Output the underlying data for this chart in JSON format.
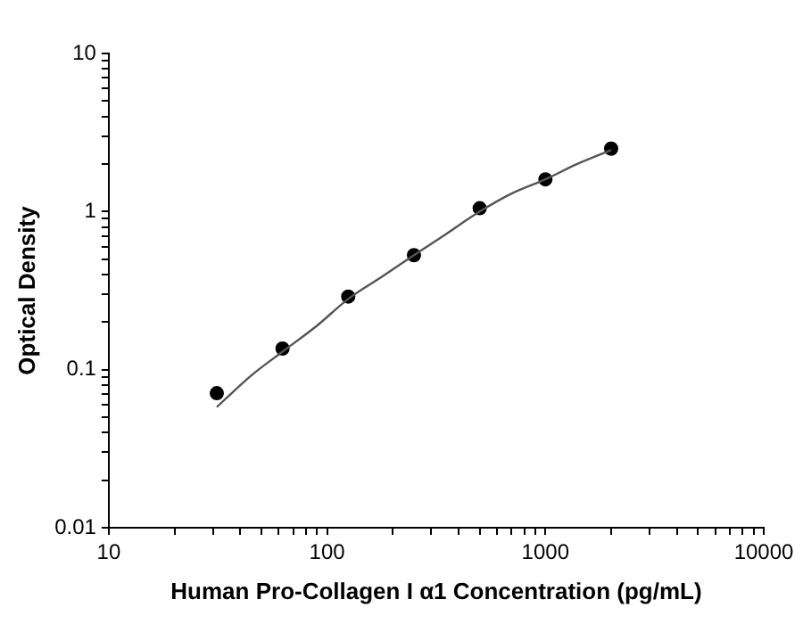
{
  "chart_data": {
    "type": "scatter",
    "xlabel": "Human Pro-Collagen I α1 Concentration (pg/mL)",
    "ylabel": "Optical Density",
    "log": "xy",
    "grid": false,
    "legend": false,
    "marker": "circle",
    "xlim": [
      10,
      10000
    ],
    "ylim": [
      0.01,
      10
    ],
    "xticks": [
      10,
      {
        "value": 20,
        "label": null
      },
      {
        "value": 30,
        "label": null
      },
      {
        "value": 40,
        "label": null
      },
      {
        "value": 50,
        "label": null
      },
      {
        "value": 60,
        "label": null
      },
      {
        "value": 70,
        "label": null
      },
      {
        "value": 80,
        "label": null
      },
      {
        "value": 90,
        "label": null
      },
      100,
      {
        "value": 200,
        "label": null
      },
      {
        "value": 300,
        "label": null
      },
      {
        "value": 400,
        "label": null
      },
      {
        "value": 500,
        "label": null
      },
      {
        "value": 600,
        "label": null
      },
      {
        "value": 700,
        "label": null
      },
      {
        "value": 800,
        "label": null
      },
      {
        "value": 900,
        "label": null
      },
      1000,
      {
        "value": 2000,
        "label": null
      },
      {
        "value": 3000,
        "label": null
      },
      {
        "value": 4000,
        "label": null
      },
      {
        "value": 5000,
        "label": null
      },
      {
        "value": 6000,
        "label": null
      },
      {
        "value": 7000,
        "label": null
      },
      {
        "value": 8000,
        "label": null
      },
      {
        "value": 9000,
        "label": null
      },
      10000
    ],
    "yticks": [
      0.01,
      {
        "value": 0.02,
        "label": null
      },
      {
        "value": 0.03,
        "label": null
      },
      {
        "value": 0.04,
        "label": null
      },
      {
        "value": 0.05,
        "label": null
      },
      {
        "value": 0.06,
        "label": null
      },
      {
        "value": 0.07,
        "label": null
      },
      {
        "value": 0.08,
        "label": null
      },
      {
        "value": 0.09,
        "label": null
      },
      0.1,
      {
        "value": 0.2,
        "label": null
      },
      {
        "value": 0.3,
        "label": null
      },
      {
        "value": 0.4,
        "label": null
      },
      {
        "value": 0.5,
        "label": null
      },
      {
        "value": 0.6,
        "label": null
      },
      {
        "value": 0.7,
        "label": null
      },
      {
        "value": 0.8,
        "label": null
      },
      {
        "value": 0.9,
        "label": null
      },
      1,
      {
        "value": 2,
        "label": null
      },
      {
        "value": 3,
        "label": null
      },
      {
        "value": 4,
        "label": null
      },
      {
        "value": 5,
        "label": null
      },
      {
        "value": 6,
        "label": null
      },
      {
        "value": 7,
        "label": null
      },
      {
        "value": 8,
        "label": null
      },
      {
        "value": 9,
        "label": null
      },
      10
    ],
    "series": [
      {
        "color": "#000000",
        "x": [
          31.25,
          62.5,
          125,
          250,
          500,
          1000,
          2000
        ],
        "values": [
          0.071,
          0.136,
          0.29,
          0.53,
          1.05,
          1.6,
          2.5
        ]
      },
      {
        "type": "line",
        "color": "#555555",
        "marker": "none",
        "x": [
          31.25,
          45,
          62.5,
          90,
          125,
          180,
          250,
          350,
          500,
          700,
          1000,
          1400,
          2000
        ],
        "values": [
          0.058,
          0.092,
          0.13,
          0.19,
          0.28,
          0.39,
          0.53,
          0.72,
          1.0,
          1.3,
          1.6,
          2.0,
          2.45
        ]
      }
    ]
  }
}
